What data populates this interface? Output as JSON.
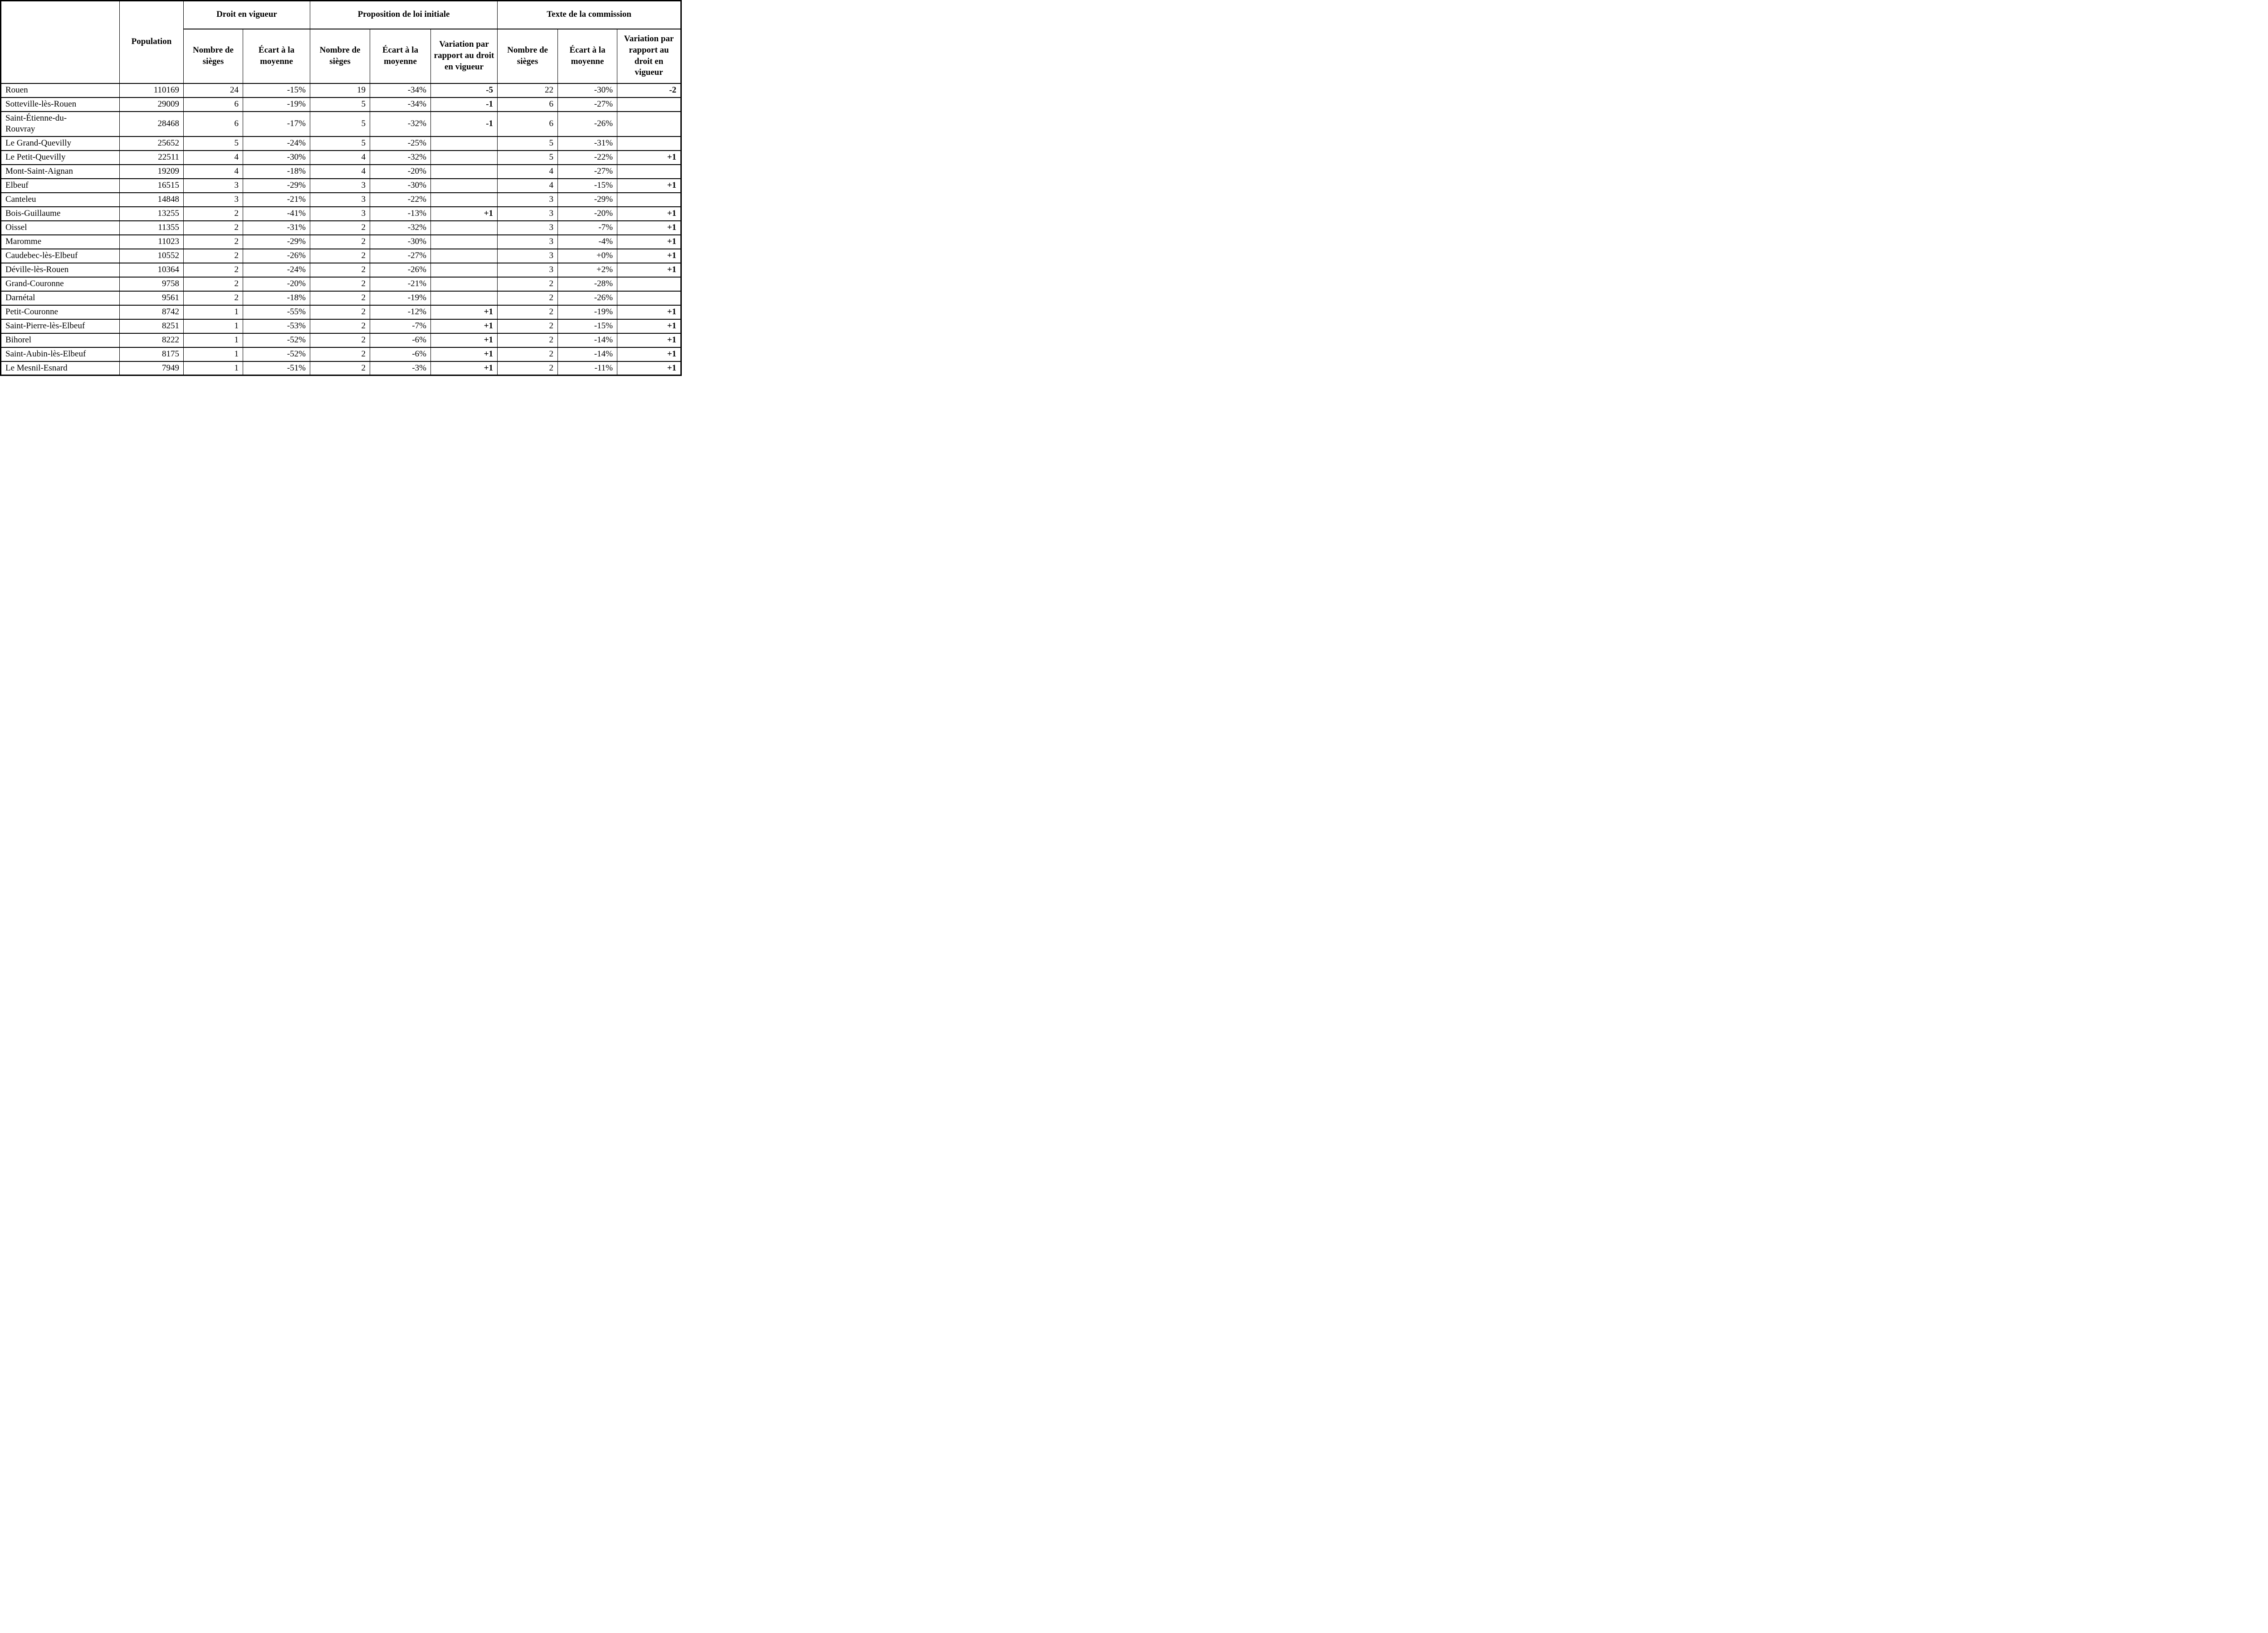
{
  "table": {
    "headers": {
      "population": "Population",
      "groups": [
        {
          "label": "Droit en vigueur"
        },
        {
          "label": "Proposition de loi initiale"
        },
        {
          "label": "Texte de la commission"
        }
      ],
      "sub": {
        "sieges": "Nombre de sièges",
        "ecart": "Écart à la moyenne",
        "variation": "Variation par rapport au droit en vigueur"
      }
    },
    "rows": [
      {
        "name": "Rouen",
        "values": [
          "110169",
          "24",
          "-15%",
          "19",
          "-34%",
          "-5",
          "22",
          "-30%",
          "-2"
        ]
      },
      {
        "name": "Sotteville-lès-Rouen",
        "values": [
          "29009",
          "6",
          "-19%",
          "5",
          "-34%",
          "-1",
          "6",
          "-27%",
          ""
        ]
      },
      {
        "name": "Saint-Étienne-du-Rouvray",
        "values": [
          "28468",
          "6",
          "-17%",
          "5",
          "-32%",
          "-1",
          "6",
          "-26%",
          ""
        ]
      },
      {
        "name": "Le Grand-Quevilly",
        "values": [
          "25652",
          "5",
          "-24%",
          "5",
          "-25%",
          "",
          "5",
          "-31%",
          ""
        ]
      },
      {
        "name": "Le Petit-Quevilly",
        "values": [
          "22511",
          "4",
          "-30%",
          "4",
          "-32%",
          "",
          "5",
          "-22%",
          "+1"
        ]
      },
      {
        "name": "Mont-Saint-Aignan",
        "values": [
          "19209",
          "4",
          "-18%",
          "4",
          "-20%",
          "",
          "4",
          "-27%",
          ""
        ]
      },
      {
        "name": "Elbeuf",
        "values": [
          "16515",
          "3",
          "-29%",
          "3",
          "-30%",
          "",
          "4",
          "-15%",
          "+1"
        ]
      },
      {
        "name": "Canteleu",
        "values": [
          "14848",
          "3",
          "-21%",
          "3",
          "-22%",
          "",
          "3",
          "-29%",
          ""
        ]
      },
      {
        "name": "Bois-Guillaume",
        "values": [
          "13255",
          "2",
          "-41%",
          "3",
          "-13%",
          "+1",
          "3",
          "-20%",
          "+1"
        ]
      },
      {
        "name": "Oissel",
        "values": [
          "11355",
          "2",
          "-31%",
          "2",
          "-32%",
          "",
          "3",
          "-7%",
          "+1"
        ]
      },
      {
        "name": "Maromme",
        "values": [
          "11023",
          "2",
          "-29%",
          "2",
          "-30%",
          "",
          "3",
          "-4%",
          "+1"
        ]
      },
      {
        "name": "Caudebec-lès-Elbeuf",
        "values": [
          "10552",
          "2",
          "-26%",
          "2",
          "-27%",
          "",
          "3",
          "+0%",
          "+1"
        ]
      },
      {
        "name": "Déville-lès-Rouen",
        "values": [
          "10364",
          "2",
          "-24%",
          "2",
          "-26%",
          "",
          "3",
          "+2%",
          "+1"
        ]
      },
      {
        "name": "Grand-Couronne",
        "values": [
          "9758",
          "2",
          "-20%",
          "2",
          "-21%",
          "",
          "2",
          "-28%",
          ""
        ]
      },
      {
        "name": "Darnétal",
        "values": [
          "9561",
          "2",
          "-18%",
          "2",
          "-19%",
          "",
          "2",
          "-26%",
          ""
        ]
      },
      {
        "name": "Petit-Couronne",
        "values": [
          "8742",
          "1",
          "-55%",
          "2",
          "-12%",
          "+1",
          "2",
          "-19%",
          "+1"
        ]
      },
      {
        "name": "Saint-Pierre-lès-Elbeuf",
        "values": [
          "8251",
          "1",
          "-53%",
          "2",
          "-7%",
          "+1",
          "2",
          "-15%",
          "+1"
        ]
      },
      {
        "name": "Bihorel",
        "values": [
          "8222",
          "1",
          "-52%",
          "2",
          "-6%",
          "+1",
          "2",
          "-14%",
          "+1"
        ]
      },
      {
        "name": "Saint-Aubin-lès-Elbeuf",
        "values": [
          "8175",
          "1",
          "-52%",
          "2",
          "-6%",
          "+1",
          "2",
          "-14%",
          "+1"
        ]
      },
      {
        "name": "Le Mesnil-Esnard",
        "values": [
          "7949",
          "1",
          "-51%",
          "2",
          "-3%",
          "+1",
          "2",
          "-11%",
          "+1"
        ]
      }
    ]
  }
}
